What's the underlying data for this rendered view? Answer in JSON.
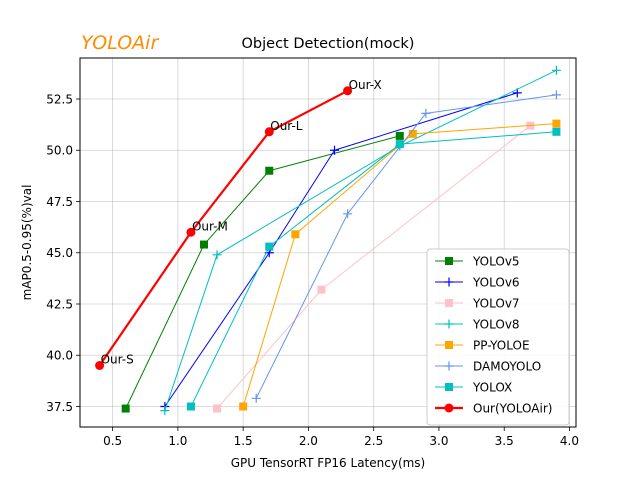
{
  "brand": {
    "text": "YOLOAir",
    "color": "#ff8c00"
  },
  "chart_data": {
    "type": "line",
    "title": "Object Detection(mock)",
    "xlabel": "GPU TensorRT FP16 Latency(ms)",
    "ylabel": "mAP0.5-0.95(%)val",
    "xlim": [
      0.25,
      4.05
    ],
    "ylim": [
      36.5,
      54.5
    ],
    "xticks": [
      0.5,
      1.0,
      1.5,
      2.0,
      2.5,
      3.0,
      3.5,
      4.0
    ],
    "xtick_labels": [
      "0.5",
      "1.0",
      "1.5",
      "2.0",
      "2.5",
      "3.0",
      "3.5",
      "4.0"
    ],
    "yticks": [
      37.5,
      40.0,
      42.5,
      45.0,
      47.5,
      50.0,
      52.5
    ],
    "ytick_labels": [
      "37.5",
      "40.0",
      "42.5",
      "45.0",
      "47.5",
      "50.0",
      "52.5"
    ],
    "grid": true,
    "legend_position": "lower-right",
    "series": [
      {
        "name": "YOLOv5",
        "color": "#008000",
        "marker": "square",
        "linewidth": 1,
        "x": [
          0.6,
          1.2,
          1.7,
          2.7
        ],
        "y": [
          37.4,
          45.4,
          49.0,
          50.7
        ]
      },
      {
        "name": "YOLOv6",
        "color": "#0000ff",
        "marker": "plus",
        "linewidth": 1,
        "x": [
          0.9,
          1.7,
          2.2,
          3.6
        ],
        "y": [
          37.5,
          45.0,
          50.0,
          52.8
        ]
      },
      {
        "name": "YOLOv7",
        "color": "#ffc0cb",
        "marker": "square",
        "linewidth": 1,
        "x": [
          1.3,
          2.1,
          3.7
        ],
        "y": [
          37.4,
          43.2,
          51.2
        ]
      },
      {
        "name": "YOLOv8",
        "color": "#00bfbf",
        "marker": "plus",
        "linewidth": 1,
        "x": [
          0.9,
          1.3,
          2.7,
          3.9
        ],
        "y": [
          37.3,
          44.9,
          50.2,
          53.9
        ]
      },
      {
        "name": "PP-YOLOE",
        "color": "#ffa500",
        "marker": "square",
        "linewidth": 1,
        "x": [
          1.5,
          1.9,
          2.8,
          3.9
        ],
        "y": [
          37.5,
          45.9,
          50.8,
          51.3
        ]
      },
      {
        "name": "DAMOYOLO",
        "color": "#6495ed",
        "marker": "plus",
        "linewidth": 1,
        "x": [
          1.6,
          2.3,
          2.9,
          3.9
        ],
        "y": [
          37.9,
          46.9,
          51.8,
          52.7
        ]
      },
      {
        "name": "YOLOX",
        "color": "#00bfbf",
        "marker": "square",
        "linewidth": 1,
        "x": [
          1.1,
          1.7,
          2.7,
          3.9
        ],
        "y": [
          37.5,
          45.3,
          50.3,
          50.9
        ]
      },
      {
        "name": "Our(YOLOAir)",
        "color": "#ff0000",
        "marker": "circle",
        "linewidth": 2.2,
        "x": [
          0.4,
          1.1,
          1.7,
          2.3
        ],
        "y": [
          39.5,
          46.0,
          50.9,
          52.9
        ]
      }
    ],
    "annotations": [
      {
        "text": "Our-S",
        "x": 0.4,
        "y": 39.5
      },
      {
        "text": "Our-M",
        "x": 1.1,
        "y": 46.0
      },
      {
        "text": "Our-L",
        "x": 1.7,
        "y": 50.9
      },
      {
        "text": "Our-X",
        "x": 2.3,
        "y": 52.9
      }
    ]
  }
}
